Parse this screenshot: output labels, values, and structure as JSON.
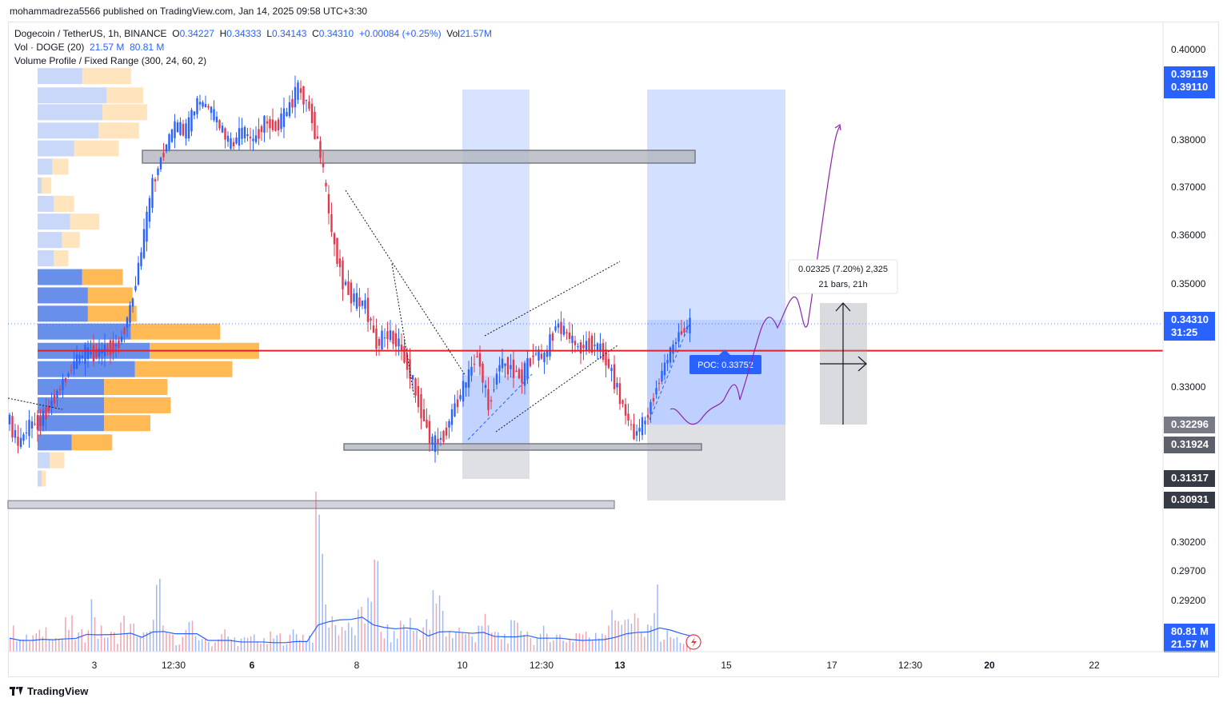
{
  "header": {
    "publish_line": "mohammadreza5566 published on TradingView.com, Jan 14, 2025 09:58 UTC+3:30"
  },
  "legend": {
    "symbol": "Dogecoin / TetherUS, 1h, BINANCE",
    "o_label": "O",
    "o": "0.34227",
    "h_label": "H",
    "h": "0.34333",
    "l_label": "L",
    "l": "0.34143",
    "c_label": "C",
    "c": "0.34310",
    "change": "+0.00084 (+0.25%)",
    "vol_label": "Vol",
    "vol": "21.57M",
    "vol_indicator": "Vol · DOGE (20)",
    "vol_v1": "21.57 M",
    "vol_v2": "80.81 M",
    "vp_indicator": "Volume Profile / Fixed Range (300, 24, 60, 2)"
  },
  "chart_data": {
    "type": "candlestick",
    "symbol": "Dogecoin / TetherUS",
    "interval": "1h",
    "exchange": "BINANCE",
    "ylim": [
      0.2875,
      0.4045
    ],
    "y_ticks": [
      "0.40000",
      "0.38000",
      "0.37000",
      "0.36000",
      "0.35000",
      "0.33000",
      "0.30200",
      "0.29700",
      "0.29200"
    ],
    "x_ticks": [
      "3",
      "12:30",
      "6",
      "8",
      "10",
      "12:30",
      "13",
      "15",
      "17",
      "12:30",
      "20",
      "22"
    ],
    "bold_x_ticks": [
      "6",
      "13",
      "20"
    ],
    "price_path": [
      [
        0.323,
        0.324
      ],
      [
        0.321,
        0.318
      ],
      [
        0.319,
        0.322
      ],
      [
        0.324,
        0.323
      ],
      [
        0.326,
        0.327
      ],
      [
        0.329,
        0.331
      ],
      [
        0.333,
        0.335
      ],
      [
        0.336,
        0.337
      ],
      [
        0.338,
        0.337
      ],
      [
        0.336,
        0.338
      ],
      [
        0.337,
        0.339
      ],
      [
        0.338,
        0.346
      ],
      [
        0.352,
        0.358
      ],
      [
        0.364,
        0.372
      ],
      [
        0.376,
        0.379
      ],
      [
        0.381,
        0.384
      ],
      [
        0.386,
        0.383
      ],
      [
        0.385,
        0.389
      ],
      [
        0.391,
        0.388
      ],
      [
        0.386,
        0.384
      ],
      [
        0.382,
        0.38
      ],
      [
        0.381,
        0.383
      ],
      [
        0.38,
        0.381
      ],
      [
        0.383,
        0.385
      ],
      [
        0.386,
        0.384
      ],
      [
        0.385,
        0.387
      ],
      [
        0.389,
        0.392
      ],
      [
        0.391,
        0.388
      ],
      [
        0.386,
        0.378
      ],
      [
        0.371,
        0.362
      ],
      [
        0.358,
        0.352
      ],
      [
        0.35,
        0.348
      ],
      [
        0.353,
        0.347
      ],
      [
        0.344,
        0.339
      ],
      [
        0.336,
        0.341
      ],
      [
        0.343,
        0.339
      ],
      [
        0.337,
        0.333
      ],
      [
        0.33,
        0.325
      ],
      [
        0.322,
        0.318
      ],
      [
        0.317,
        0.32
      ],
      [
        0.322,
        0.326
      ],
      [
        0.328,
        0.331
      ],
      [
        0.336,
        0.337
      ],
      [
        0.334,
        0.326
      ],
      [
        0.33,
        0.335
      ],
      [
        0.336,
        0.334
      ],
      [
        0.333,
        0.332
      ],
      [
        0.334,
        0.337
      ],
      [
        0.338,
        0.336
      ],
      [
        0.339,
        0.343
      ],
      [
        0.34,
        0.341
      ],
      [
        0.34,
        0.338
      ],
      [
        0.337,
        0.339
      ],
      [
        0.34,
        0.338
      ],
      [
        0.336,
        0.333
      ],
      [
        0.33,
        0.326
      ],
      [
        0.324,
        0.32
      ],
      [
        0.321,
        0.323
      ],
      [
        0.326,
        0.33
      ],
      [
        0.333,
        0.336
      ],
      [
        0.338,
        0.341
      ],
      [
        0.343,
        0.343
      ]
    ],
    "volume_profile": [
      {
        "price": 0.3945,
        "buy": 55,
        "sell": 60
      },
      {
        "price": 0.3905,
        "buy": 85,
        "sell": 45
      },
      {
        "price": 0.387,
        "buy": 80,
        "sell": 55
      },
      {
        "price": 0.3832,
        "buy": 75,
        "sell": 50
      },
      {
        "price": 0.3795,
        "buy": 45,
        "sell": 55
      },
      {
        "price": 0.3757,
        "buy": 18,
        "sell": 20
      },
      {
        "price": 0.3718,
        "buy": 5,
        "sell": 12
      },
      {
        "price": 0.368,
        "buy": 20,
        "sell": 25
      },
      {
        "price": 0.3643,
        "buy": 40,
        "sell": 36
      },
      {
        "price": 0.3605,
        "buy": 30,
        "sell": 22
      },
      {
        "price": 0.3567,
        "buy": 20,
        "sell": 18
      },
      {
        "price": 0.3528,
        "buy": 55,
        "sell": 50
      },
      {
        "price": 0.349,
        "buy": 62,
        "sell": 55
      },
      {
        "price": 0.3452,
        "buy": 62,
        "sell": 60
      },
      {
        "price": 0.3415,
        "buy": 115,
        "sell": 110
      },
      {
        "price": 0.3375,
        "buy": 138,
        "sell": 135
      },
      {
        "price": 0.3337,
        "buy": 120,
        "sell": 120
      },
      {
        "price": 0.33,
        "buy": 82,
        "sell": 78
      },
      {
        "price": 0.3262,
        "buy": 82,
        "sell": 82
      },
      {
        "price": 0.3225,
        "buy": 82,
        "sell": 57
      },
      {
        "price": 0.3185,
        "buy": 42,
        "sell": 50
      },
      {
        "price": 0.3148,
        "buy": 15,
        "sell": 18
      },
      {
        "price": 0.311,
        "buy": 5,
        "sell": 5
      }
    ],
    "poc": {
      "price": 0.33752,
      "label": "POC: 0.33752"
    },
    "zones": [
      {
        "price_low": 0.3755,
        "price_high": 0.378
      },
      {
        "price_low": 0.319,
        "price_high": 0.3205
      },
      {
        "price_low": 0.3048,
        "price_high": 0.3064
      }
    ],
    "measure": {
      "line1": "0.02325 (7.20%) 2,325",
      "line2": "21 bars, 21h"
    },
    "volume_series": [
      0.6,
      0.4,
      0.5,
      0.7,
      0.45,
      0.8,
      0.5,
      1.4,
      0.6,
      0.5,
      0.9,
      0.7,
      0.5,
      1.8,
      0.6,
      0.4,
      0.7,
      0.5,
      0.3,
      0.6,
      0.4,
      0.35,
      0.5,
      0.3,
      0.45,
      0.4,
      0.6,
      0.5,
      4.0,
      1.2,
      0.8,
      0.7,
      1.0,
      2.3,
      0.6,
      0.5,
      0.9,
      0.7,
      0.8,
      1.5,
      0.6,
      0.7,
      0.5,
      1.0,
      0.6,
      0.5,
      0.7,
      0.8,
      0.4,
      0.6,
      0.5,
      0.4,
      0.6,
      0.5,
      0.7,
      1.0,
      1.2,
      0.9,
      0.6,
      1.6,
      0.5,
      0.4,
      0.3
    ]
  },
  "price_labels": {
    "blue_top_1": "0.39119",
    "blue_top_2": "0.39110",
    "current": "0.34310",
    "countdown": "31:25",
    "gray_1": "0.32296",
    "gray_2": "0.31924",
    "gray_3": "0.31317",
    "gray_4": "0.30931",
    "vol_1": "80.81 M",
    "vol_2": "21.57 M"
  },
  "colors": {
    "up": "#2962ff",
    "down": "#e0384d",
    "poc_line": "#e0202a",
    "box_blue": "#2962ff",
    "box_gray": "#9598a1",
    "projection": "#8e24aa",
    "vp_buy": "#4d7ce8",
    "vp_sell": "#ffb143"
  },
  "footer": {
    "brand": "TradingView"
  }
}
